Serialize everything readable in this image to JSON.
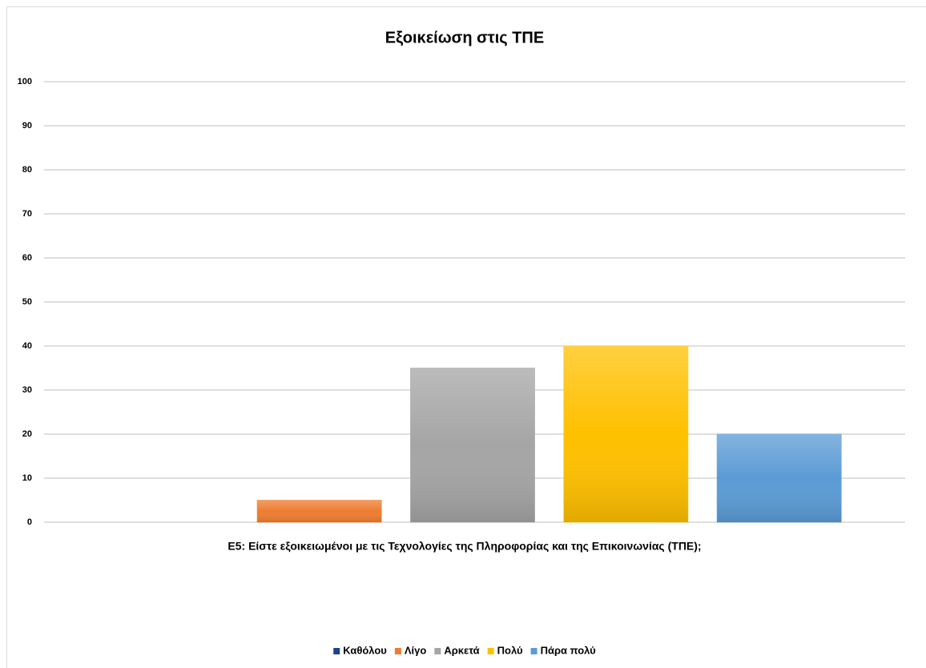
{
  "chart_data": {
    "type": "bar",
    "title": "Εξοικείωση στις ΤΠΕ",
    "categories": [
      "Ε5: Είστε εξοικειωμένοι με τις Τεχνολογίες της Πληροφορίας και της Επικοινωνίας (ΤΠΕ);"
    ],
    "series": [
      {
        "name": "Καθόλου",
        "color": "#203f8f",
        "values": [
          0
        ]
      },
      {
        "name": "Λίγο",
        "color": "#ed7d31",
        "values": [
          5
        ]
      },
      {
        "name": "Αρκετά",
        "color": "#a5a5a5",
        "values": [
          35
        ]
      },
      {
        "name": "Πολύ",
        "color": "#ffc000",
        "values": [
          40
        ]
      },
      {
        "name": "Πάρα πολύ",
        "color": "#5b9bd5",
        "values": [
          20
        ]
      }
    ],
    "ylim": [
      0,
      100
    ],
    "yticks": [
      0,
      10,
      20,
      30,
      40,
      50,
      60,
      70,
      80,
      90,
      100
    ],
    "grid": true,
    "legend": "bottom"
  }
}
